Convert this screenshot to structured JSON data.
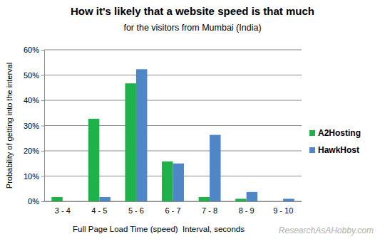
{
  "chart_data": {
    "type": "bar",
    "title": "How it's likely that a website speed is that much",
    "subtitle": "for the visitors from Mumbai (India)",
    "x_label": "Full Page Load Time (speed)  Interval, seconds",
    "y_label": "Probability of getting into the interval",
    "annotation": "ResearchAsAHobby.com",
    "categories": [
      "3 - 4",
      "4 - 5",
      "5 - 6",
      "6 - 7",
      "7 - 8",
      "8 - 9",
      "9 - 10"
    ],
    "series": [
      {
        "name": "A2Hosting",
        "color": "#1fb24a",
        "values": [
          1.7,
          32.7,
          46.7,
          15.8,
          1.7,
          1.0,
          0
        ]
      },
      {
        "name": "HawkHost",
        "color": "#4f86c6",
        "values": [
          0,
          1.7,
          52.3,
          15.0,
          26.3,
          3.7,
          1.0
        ]
      }
    ],
    "ylim": [
      0,
      60
    ],
    "yticks": [
      {
        "value": 0,
        "label": "0%"
      },
      {
        "value": 10,
        "label": "10%"
      },
      {
        "value": 20,
        "label": "20%"
      },
      {
        "value": 30,
        "label": "30%"
      },
      {
        "value": 40,
        "label": "40%"
      },
      {
        "value": 50,
        "label": "50%"
      },
      {
        "value": 60,
        "label": "60%"
      }
    ],
    "grid": true,
    "legend": "right"
  }
}
